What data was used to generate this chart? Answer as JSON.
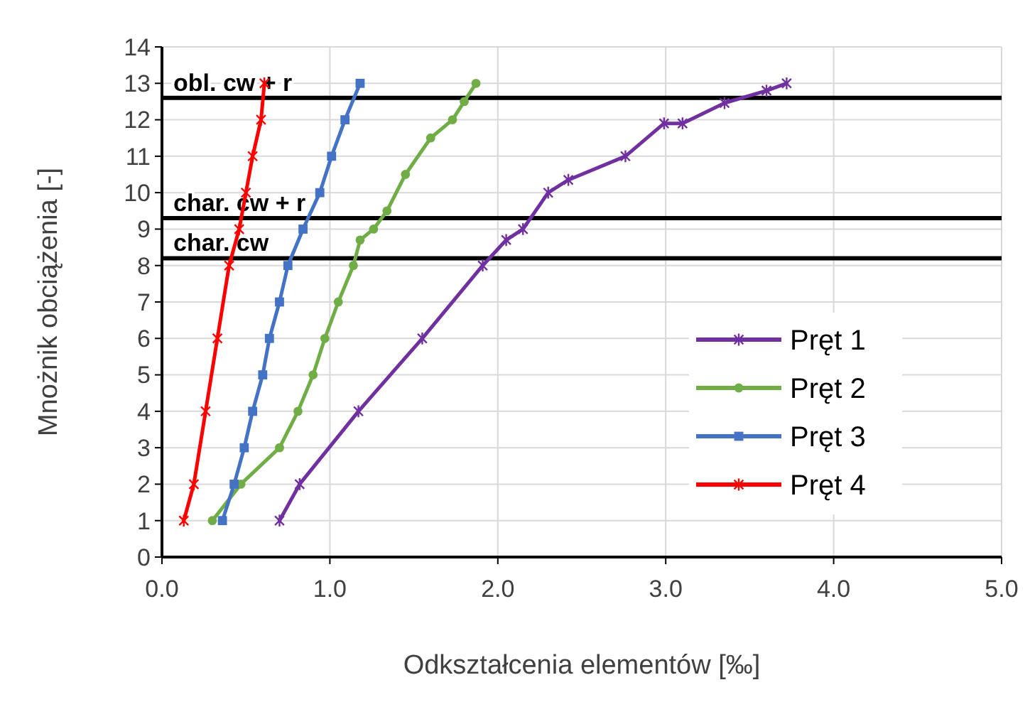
{
  "chart_data": {
    "type": "line",
    "xlabel": "Odkształcenia elementów [‰]",
    "ylabel": "Mnożnik obciążenia [-]",
    "xlim": [
      0,
      5
    ],
    "xticks": [
      {
        "value": 0,
        "label": "0.0"
      },
      {
        "value": 1,
        "label": "1.0"
      },
      {
        "value": 2,
        "label": "2.0"
      },
      {
        "value": 3,
        "label": "3.0"
      },
      {
        "value": 4,
        "label": "4.0"
      },
      {
        "value": 5,
        "label": "5.0"
      }
    ],
    "ylim": [
      0,
      14
    ],
    "yticks": [
      0,
      1,
      2,
      3,
      4,
      5,
      6,
      7,
      8,
      9,
      10,
      11,
      12,
      13,
      14
    ],
    "grid": true,
    "legend": "right",
    "line_style": "solid",
    "ref_lines": [
      {
        "axis": "y",
        "value": 12.6,
        "label": "obl. cw + r",
        "color": "#000000"
      },
      {
        "axis": "y",
        "value": 9.3,
        "label": "char. cw + r",
        "color": "#000000"
      },
      {
        "axis": "y",
        "value": 8.2,
        "label": "char. cw",
        "color": "#000000"
      }
    ],
    "series": [
      {
        "name": "Pręt 1",
        "color": "#7030a0",
        "marker": "cross",
        "x": [
          0.7,
          0.82,
          1.17,
          1.55,
          1.91,
          2.05,
          2.15,
          2.3,
          2.42,
          2.76,
          2.99,
          3.1,
          3.35,
          3.6,
          3.72
        ],
        "values": [
          1,
          2,
          4,
          6,
          8,
          8.7,
          9,
          10,
          10.35,
          11,
          11.9,
          11.9,
          12.46,
          12.8,
          13
        ]
      },
      {
        "name": "Pręt 2",
        "color": "#70ad47",
        "marker": "circle",
        "x": [
          0.3,
          0.47,
          0.7,
          0.81,
          0.9,
          0.97,
          1.05,
          1.14,
          1.18,
          1.26,
          1.34,
          1.45,
          1.6,
          1.73,
          1.8,
          1.87
        ],
        "values": [
          1,
          2,
          3,
          4,
          5,
          6,
          7,
          8,
          8.7,
          9,
          9.5,
          10.5,
          11.5,
          12,
          12.5,
          13
        ]
      },
      {
        "name": "Pręt 3",
        "color": "#4472c4",
        "marker": "square",
        "x": [
          0.36,
          0.43,
          0.49,
          0.54,
          0.6,
          0.64,
          0.7,
          0.75,
          0.84,
          0.94,
          1.01,
          1.09,
          1.18
        ],
        "values": [
          1,
          2,
          3,
          4,
          5,
          6,
          7,
          8,
          9,
          10,
          11,
          12,
          13
        ]
      },
      {
        "name": "Pręt 4",
        "color": "#ff0000",
        "marker": "cross",
        "x": [
          0.13,
          0.19,
          0.26,
          0.33,
          0.4,
          0.46,
          0.5,
          0.54,
          0.59,
          0.61
        ],
        "values": [
          1,
          2,
          4,
          6,
          8,
          9,
          10,
          11,
          12,
          13
        ]
      }
    ]
  }
}
